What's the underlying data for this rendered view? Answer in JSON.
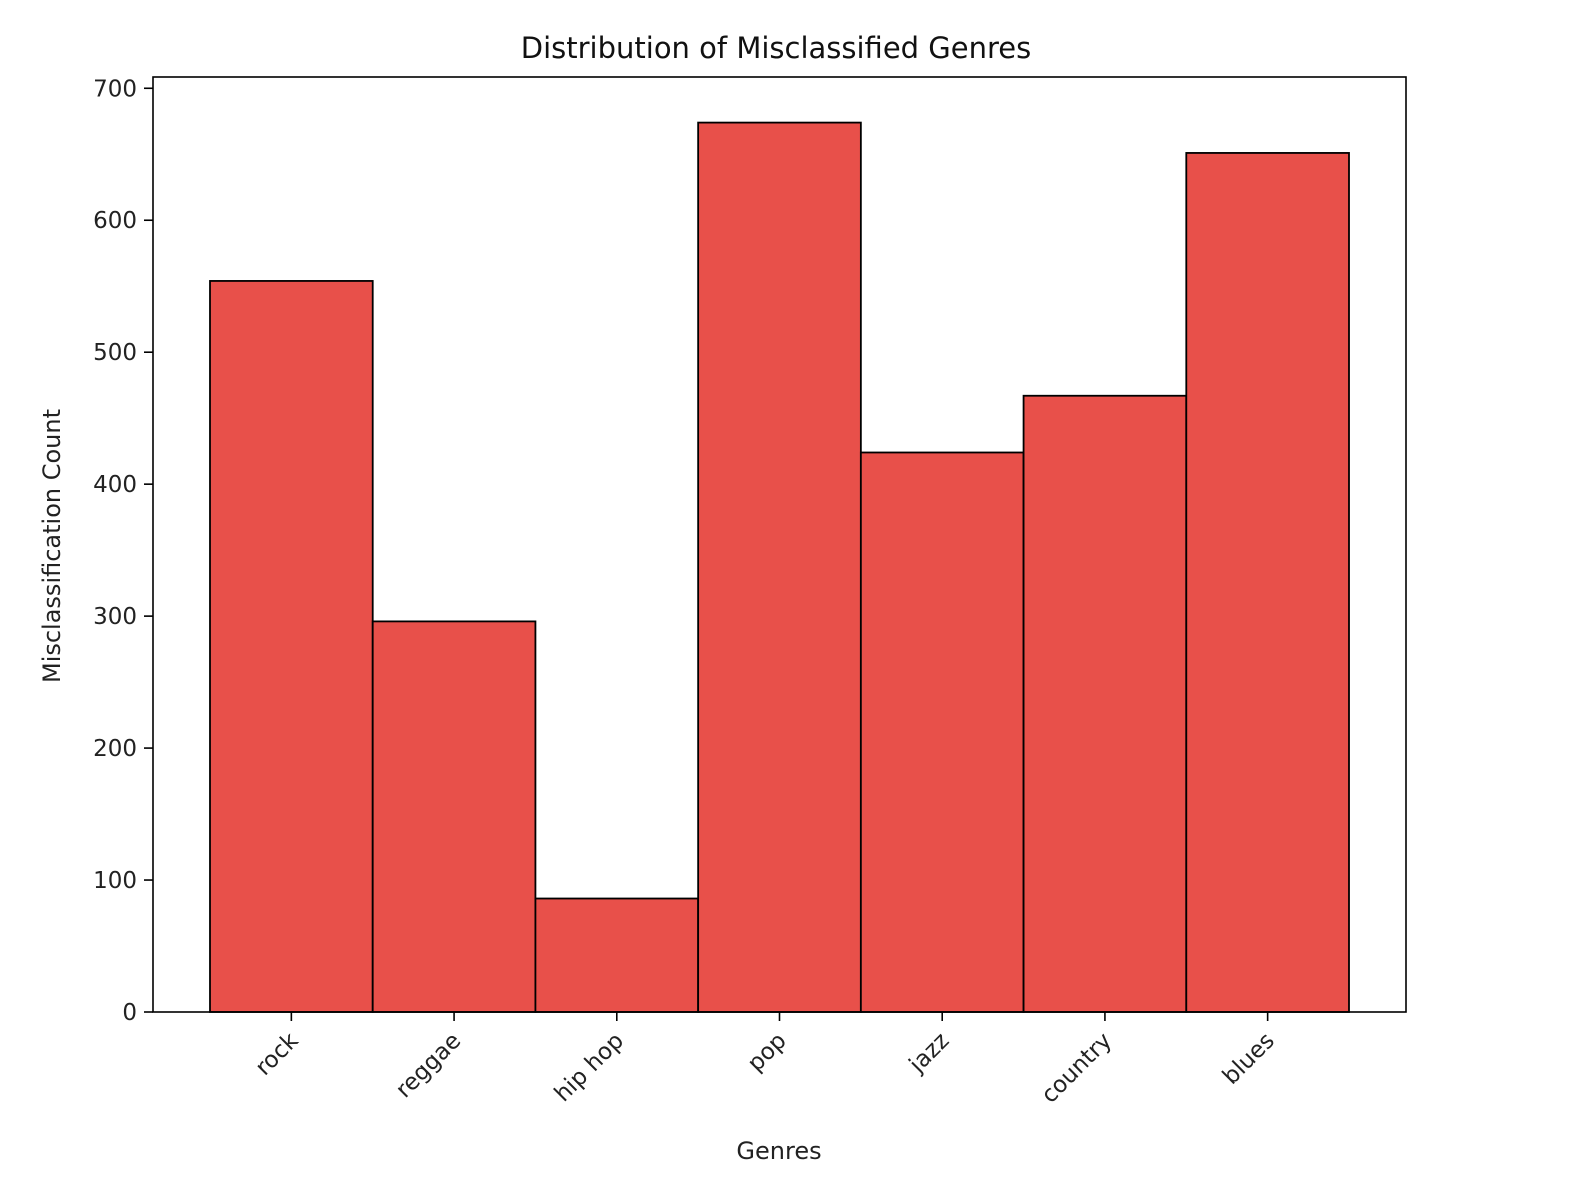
{
  "chart_data": {
    "type": "bar",
    "title": "Distribution of Misclassified Genres",
    "xlabel": "Genres",
    "ylabel": "Misclassification Count",
    "categories": [
      "rock",
      "reggae",
      "hip hop",
      "pop",
      "jazz",
      "country",
      "blues"
    ],
    "values": [
      554,
      296,
      86,
      674,
      424,
      467,
      651
    ],
    "ylim": [
      0,
      700
    ],
    "yticks": [
      0,
      100,
      200,
      300,
      400,
      500,
      600,
      700
    ],
    "grid": false,
    "legend": "none",
    "colors": {
      "bar_fill": "#e8504a",
      "bar_edge": "#000000"
    }
  }
}
